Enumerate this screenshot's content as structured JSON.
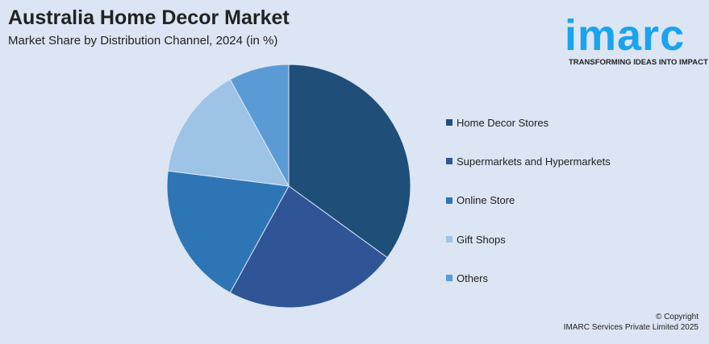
{
  "header": {
    "title": "Australia Home Decor Market",
    "subtitle": "Market Share by Distribution Channel, 2024 (in %)"
  },
  "logo": {
    "word": "imarc",
    "tagline": "TRANSFORMING IDEAS INTO IMPACT",
    "color": "#1aa3f0"
  },
  "chart_data": {
    "type": "pie",
    "title": "Australia Home Decor Market",
    "subtitle": "Market Share by Distribution Channel, 2024 (in %)",
    "categories": [
      "Home Decor Stores",
      "Supermarkets and Hypermarkets",
      "Online Store",
      "Gift Shops",
      "Others"
    ],
    "values": [
      35,
      23,
      19,
      15,
      8
    ],
    "colors": [
      "#1f4e79",
      "#2f5597",
      "#2e75b6",
      "#9dc3e6",
      "#5b9bd5"
    ],
    "start": "top",
    "direction": "clockwise",
    "legend_placement": "right"
  },
  "footer": {
    "copyright": "© Copyright",
    "company": "IMARC Services Private Limited 2025"
  }
}
